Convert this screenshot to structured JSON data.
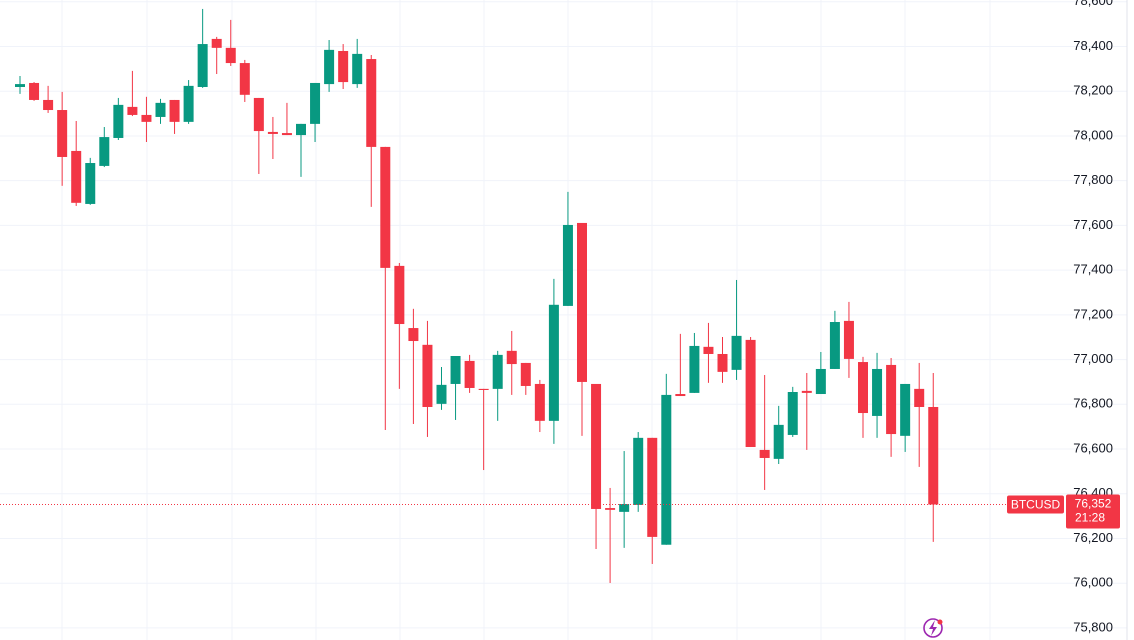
{
  "chart_data": {
    "type": "candlestick",
    "up_color": "#089981",
    "down_color": "#f23645",
    "ylim": [
      75746,
      78608
    ],
    "yticks": [
      {
        "value": 75800,
        "label": "75,800"
      },
      {
        "value": 76000,
        "label": "76,000"
      },
      {
        "value": 76200,
        "label": "76,200"
      },
      {
        "value": 76400,
        "label": "76,400"
      },
      {
        "value": 76600,
        "label": "76,600"
      },
      {
        "value": 76800,
        "label": "76,800"
      },
      {
        "value": 77000,
        "label": "77,000"
      },
      {
        "value": 77200,
        "label": "77,200"
      },
      {
        "value": 77400,
        "label": "77,400"
      },
      {
        "value": 77600,
        "label": "77,600"
      },
      {
        "value": 77800,
        "label": "77,800"
      },
      {
        "value": 78000,
        "label": "78,000"
      },
      {
        "value": 78200,
        "label": "78,200"
      },
      {
        "value": 78400,
        "label": "78,400"
      },
      {
        "value": 78600,
        "label": "78,600"
      }
    ],
    "grid": true,
    "open": [
      78219,
      78237,
      78161,
      78116,
      77933,
      77696,
      77866,
      77991,
      78130,
      78094,
      78085,
      78161,
      78063,
      78219,
      78434,
      78394,
      78326,
      78170,
      78018,
      78013,
      78004,
      78054,
      78232,
      78380,
      78232,
      78344,
      77951,
      77419,
      77141,
      77066,
      76802,
      76891,
      76994,
      76869,
      76869,
      77039,
      76985,
      76891,
      76726,
      77240,
      77611,
      76891,
      76336,
      76319,
      76350,
      76650,
      76172,
      76846,
      76851,
      77057,
      77025,
      76954,
      77088,
      76596,
      76556,
      76663,
      76860,
      76846,
      76958,
      77173,
      76989,
      76748,
      76976,
      76659,
      76869,
      76788
    ],
    "high": [
      78268,
      78241,
      78224,
      78197,
      78067,
      77902,
      78040,
      78170,
      78291,
      78175,
      78166,
      78161,
      78250,
      78568,
      78443,
      78519,
      78340,
      78170,
      78085,
      78148,
      78054,
      78237,
      78429,
      78411,
      78434,
      78362,
      77951,
      77432,
      77227,
      77173,
      76967,
      77016,
      77021,
      76869,
      77039,
      77128,
      76985,
      76909,
      77361,
      77750,
      77611,
      76891,
      76426,
      76591,
      76676,
      76650,
      76936,
      77115,
      77119,
      77164,
      77101,
      77356,
      77101,
      76931,
      76793,
      76878,
      76940,
      77034,
      77218,
      77258,
      77012,
      77030,
      77007,
      76891,
      76985,
      76940
    ],
    "low": [
      78188,
      78157,
      78103,
      77777,
      77687,
      77692,
      77861,
      77982,
      78089,
      77973,
      78054,
      78009,
      78054,
      78215,
      78277,
      78313,
      78152,
      77830,
      77897,
      78004,
      77817,
      77973,
      78197,
      78210,
      78215,
      77683,
      76685,
      76869,
      76712,
      76654,
      76775,
      76730,
      76851,
      76506,
      76726,
      76842,
      76842,
      76676,
      76623,
      77240,
      76659,
      76153,
      76001,
      76158,
      76319,
      76086,
      76172,
      76837,
      76851,
      76896,
      76896,
      76909,
      76609,
      76417,
      76533,
      76654,
      76596,
      76846,
      76958,
      76918,
      76650,
      76650,
      76565,
      76587,
      76520,
      76185
    ],
    "close": [
      78232,
      78161,
      78116,
      77906,
      77701,
      77879,
      77995,
      78139,
      78094,
      78063,
      78148,
      78063,
      78224,
      78411,
      78394,
      78326,
      78184,
      78022,
      78009,
      78004,
      78054,
      78237,
      78385,
      78241,
      78367,
      77951,
      77410,
      77159,
      77083,
      76788,
      76887,
      77016,
      76873,
      76864,
      77021,
      76980,
      76882,
      76726,
      77245,
      77602,
      76900,
      76332,
      76328,
      76354,
      76650,
      76207,
      76842,
      76837,
      77061,
      77025,
      76945,
      77106,
      76609,
      76560,
      76708,
      76855,
      76851,
      76958,
      77168,
      77003,
      76761,
      76958,
      76667,
      76891,
      76788,
      76352
    ],
    "price_label": {
      "symbol": "BTCUSD",
      "price": "76,352",
      "countdown": "21:28"
    }
  }
}
